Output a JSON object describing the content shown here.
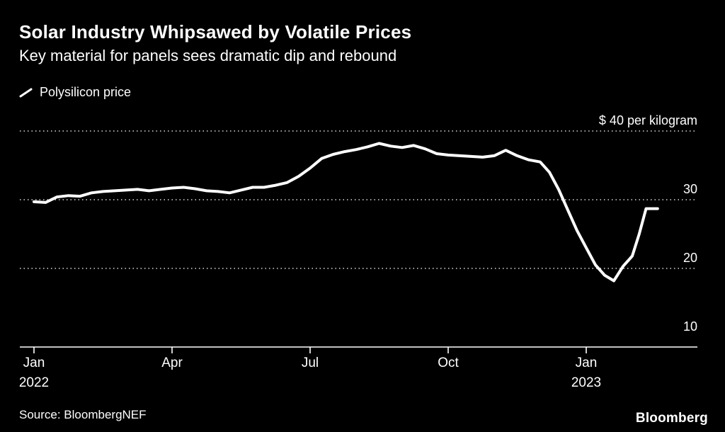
{
  "header": {
    "title": "Solar Industry Whipsawed by Volatile Prices",
    "subtitle": "Key material for panels sees dramatic dip and rebound"
  },
  "legend": {
    "label": "Polysilicon price"
  },
  "footer": {
    "source": "Source: BloombergNEF",
    "brand": "Bloomberg"
  },
  "colors": {
    "background": "#000000",
    "line": "#ffffff",
    "grid": "#d9d9d9",
    "text": "#ffffff"
  },
  "chart_data": {
    "type": "line",
    "title": "Solar Industry Whipsawed by Volatile Prices",
    "subtitle": "Key material for panels sees dramatic dip and rebound",
    "x_unit": "months since Jan 2022",
    "xlim": [
      0,
      14.4
    ],
    "ylim": [
      8.5,
      42
    ],
    "grid": "dotted-horizontal",
    "legend_position": "top-left",
    "gridlines_at": [
      40,
      30,
      20
    ],
    "y_ticks": [
      {
        "value": 40,
        "label": "$ 40 per kilogram"
      },
      {
        "value": 30,
        "label": "30"
      },
      {
        "value": 20,
        "label": "20"
      },
      {
        "value": 10,
        "label": "10"
      }
    ],
    "x_ticks": [
      {
        "pos": 0,
        "label": "Jan",
        "sublabel": "2022"
      },
      {
        "pos": 3,
        "label": "Apr",
        "sublabel": ""
      },
      {
        "pos": 6,
        "label": "Jul",
        "sublabel": ""
      },
      {
        "pos": 9,
        "label": "Oct",
        "sublabel": ""
      },
      {
        "pos": 12,
        "label": "Jan",
        "sublabel": "2023"
      }
    ],
    "line_color": "#ffffff",
    "series": [
      {
        "name": "Polysilicon price",
        "x": [
          0,
          0.25,
          0.5,
          0.75,
          1.0,
          1.25,
          1.5,
          1.75,
          2.0,
          2.25,
          2.5,
          2.75,
          3.0,
          3.25,
          3.5,
          3.75,
          4.0,
          4.25,
          4.5,
          4.75,
          5.0,
          5.25,
          5.5,
          5.75,
          6.0,
          6.25,
          6.5,
          6.75,
          7.0,
          7.25,
          7.5,
          7.75,
          8.0,
          8.25,
          8.5,
          8.75,
          9.0,
          9.25,
          9.5,
          9.75,
          10.0,
          10.25,
          10.5,
          10.75,
          11.0,
          11.2,
          11.4,
          11.6,
          11.8,
          12.0,
          12.2,
          12.4,
          12.6,
          12.8,
          13.0,
          13.15,
          13.3,
          13.55
        ],
        "values": [
          29.7,
          29.6,
          30.4,
          30.6,
          30.5,
          31.0,
          31.2,
          31.3,
          31.4,
          31.5,
          31.3,
          31.5,
          31.7,
          31.8,
          31.6,
          31.3,
          31.2,
          31.0,
          31.4,
          31.8,
          31.8,
          32.1,
          32.5,
          33.4,
          34.6,
          36.0,
          36.6,
          37.0,
          37.3,
          37.7,
          38.2,
          37.8,
          37.6,
          37.9,
          37.4,
          36.7,
          36.5,
          36.4,
          36.3,
          36.2,
          36.4,
          37.2,
          36.4,
          35.8,
          35.5,
          34.0,
          31.5,
          28.5,
          25.5,
          23.0,
          20.5,
          19.0,
          18.2,
          20.3,
          21.8,
          25.0,
          28.7,
          28.7
        ]
      }
    ]
  }
}
